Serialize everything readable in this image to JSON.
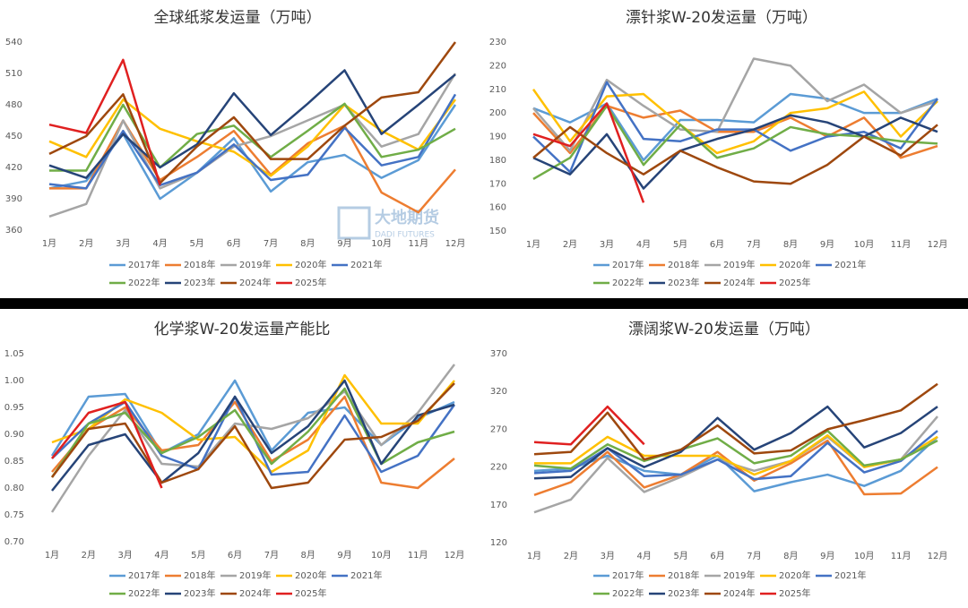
{
  "watermark": {
    "text": "大地期货",
    "subtext": "DADI FUTURES"
  },
  "chart_data": [
    {
      "type": "line",
      "title": "全球纸浆发运量（万吨）",
      "categories": [
        "1月",
        "2月",
        "3月",
        "4月",
        "5月",
        "6月",
        "7月",
        "8月",
        "9月",
        "10月",
        "11月",
        "12月"
      ],
      "ylim": [
        360,
        540
      ],
      "yticks": [
        360,
        390,
        420,
        450,
        480,
        510,
        540
      ],
      "series": [
        {
          "name": "2017年",
          "color": "#5b9bd5",
          "values": [
            400,
            407,
            452,
            390,
            415,
            448,
            397,
            425,
            432,
            410,
            427,
            480
          ]
        },
        {
          "name": "2018年",
          "color": "#ed7d31",
          "values": [
            400,
            400,
            465,
            408,
            430,
            455,
            413,
            443,
            460,
            396,
            377,
            418
          ]
        },
        {
          "name": "2019年",
          "color": "#a5a5a5",
          "values": [
            373,
            385,
            465,
            400,
            415,
            440,
            450,
            465,
            480,
            440,
            452,
            510
          ]
        },
        {
          "name": "2020年",
          "color": "#ffc000",
          "values": [
            445,
            430,
            485,
            457,
            445,
            435,
            412,
            440,
            480,
            455,
            437,
            485
          ]
        },
        {
          "name": "2021年",
          "color": "#4472c4",
          "values": [
            404,
            400,
            455,
            403,
            415,
            442,
            408,
            413,
            458,
            422,
            430,
            490
          ]
        },
        {
          "name": "2022年",
          "color": "#70ad47",
          "values": [
            417,
            417,
            480,
            420,
            452,
            460,
            430,
            455,
            481,
            430,
            437,
            457
          ]
        },
        {
          "name": "2023年",
          "color": "#264478",
          "values": [
            422,
            410,
            452,
            420,
            442,
            491,
            451,
            481,
            513,
            452,
            480,
            509
          ]
        },
        {
          "name": "2024年",
          "color": "#9e480e",
          "values": [
            433,
            450,
            490,
            405,
            440,
            468,
            428,
            428,
            460,
            487,
            492,
            540
          ]
        },
        {
          "name": "2025年",
          "color": "#e02020",
          "values": [
            461,
            453,
            523,
            403,
            null,
            null,
            null,
            null,
            null,
            null,
            null,
            null
          ]
        }
      ]
    },
    {
      "type": "line",
      "title": "漂针浆W-20发运量（万吨）",
      "categories": [
        "1月",
        "2月",
        "3月",
        "4月",
        "5月",
        "6月",
        "7月",
        "8月",
        "9月",
        "10月",
        "11月",
        "12月"
      ],
      "ylim": [
        150,
        230
      ],
      "yticks": [
        150,
        160,
        170,
        180,
        190,
        200,
        210,
        220,
        230
      ],
      "series": [
        {
          "name": "2017年",
          "color": "#5b9bd5",
          "values": [
            202,
            196,
            204,
            180,
            197,
            197,
            196,
            208,
            206,
            200,
            200,
            206
          ]
        },
        {
          "name": "2018年",
          "color": "#ed7d31",
          "values": [
            200,
            183,
            203,
            198,
            201,
            192,
            192,
            198,
            190,
            198,
            181,
            186
          ]
        },
        {
          "name": "2019年",
          "color": "#a5a5a5",
          "values": [
            202,
            184,
            214,
            203,
            193,
            192,
            223,
            220,
            205,
            212,
            200,
            205
          ]
        },
        {
          "name": "2020年",
          "color": "#ffc000",
          "values": [
            210,
            188,
            207,
            208,
            195,
            183,
            188,
            200,
            202,
            209,
            190,
            205
          ]
        },
        {
          "name": "2021年",
          "color": "#4472c4",
          "values": [
            190,
            175,
            213,
            189,
            188,
            193,
            193,
            184,
            190,
            192,
            185,
            206
          ]
        },
        {
          "name": "2022年",
          "color": "#70ad47",
          "values": [
            172,
            181,
            203,
            178,
            195,
            181,
            185,
            194,
            191,
            190,
            188,
            187
          ]
        },
        {
          "name": "2023年",
          "color": "#264478",
          "values": [
            181,
            174,
            191,
            168,
            184,
            189,
            193,
            199,
            196,
            190,
            198,
            192
          ]
        },
        {
          "name": "2024年",
          "color": "#9e480e",
          "values": [
            181,
            194,
            183,
            174,
            184,
            177,
            171,
            170,
            178,
            190,
            182,
            195
          ]
        },
        {
          "name": "2025年",
          "color": "#e02020",
          "values": [
            191,
            186,
            204,
            162,
            null,
            null,
            null,
            null,
            null,
            null,
            null,
            null
          ]
        }
      ]
    },
    {
      "type": "line",
      "title": "化学浆W-20发运量产能比",
      "categories": [
        "1月",
        "2月",
        "3月",
        "4月",
        "5月",
        "6月",
        "7月",
        "8月",
        "9月",
        "10月",
        "11月",
        "12月"
      ],
      "ylim": [
        0.7,
        1.05
      ],
      "yticks": [
        {
          "value": 0.7,
          "label": "0.70"
        },
        0.75,
        {
          "value": 0.8,
          "label": "0.80"
        },
        0.85,
        {
          "value": 0.9,
          "label": "0.90"
        },
        0.95,
        {
          "value": 1,
          "label": "1.00"
        },
        1.05
      ],
      "series": [
        {
          "name": "2017年",
          "color": "#5b9bd5",
          "values": [
            0.86,
            0.97,
            0.975,
            0.865,
            0.9,
            1.0,
            0.87,
            0.94,
            0.95,
            0.88,
            0.93,
            0.96
          ]
        },
        {
          "name": "2018年",
          "color": "#ed7d31",
          "values": [
            0.83,
            0.91,
            0.95,
            0.87,
            0.88,
            0.96,
            0.85,
            0.89,
            0.97,
            0.81,
            0.8,
            0.855
          ]
        },
        {
          "name": "2019年",
          "color": "#a5a5a5",
          "values": [
            0.755,
            0.86,
            0.945,
            0.845,
            0.84,
            0.92,
            0.91,
            0.93,
            0.98,
            0.88,
            0.94,
            1.03
          ]
        },
        {
          "name": "2020年",
          "color": "#ffc000",
          "values": [
            0.885,
            0.91,
            0.965,
            0.94,
            0.89,
            0.895,
            0.83,
            0.87,
            1.01,
            0.92,
            0.92,
            1.0
          ]
        },
        {
          "name": "2021年",
          "color": "#4472c4",
          "values": [
            0.855,
            0.92,
            0.96,
            0.86,
            0.835,
            0.97,
            0.825,
            0.83,
            0.935,
            0.83,
            0.86,
            0.955
          ]
        },
        {
          "name": "2022年",
          "color": "#70ad47",
          "values": [
            0.82,
            0.92,
            0.94,
            0.865,
            0.895,
            0.945,
            0.845,
            0.905,
            0.985,
            0.845,
            0.885,
            0.905
          ]
        },
        {
          "name": "2023年",
          "color": "#264478",
          "values": [
            0.795,
            0.88,
            0.9,
            0.81,
            0.865,
            0.97,
            0.865,
            0.915,
            1.0,
            0.845,
            0.935,
            0.955
          ]
        },
        {
          "name": "2024年",
          "color": "#9e480e",
          "values": [
            0.82,
            0.91,
            0.92,
            0.81,
            0.835,
            0.915,
            0.8,
            0.81,
            0.89,
            0.895,
            0.925,
            0.995
          ]
        },
        {
          "name": "2025年",
          "color": "#e02020",
          "values": [
            0.855,
            0.94,
            0.96,
            0.8,
            null,
            null,
            null,
            null,
            null,
            null,
            null,
            null
          ]
        }
      ]
    },
    {
      "type": "line",
      "title": "漂阔浆W-20发运量（万吨）",
      "categories": [
        "1月",
        "2月",
        "3月",
        "4月",
        "5月",
        "6月",
        "7月",
        "8月",
        "9月",
        "10月",
        "11月",
        "12月"
      ],
      "ylim": [
        120,
        370
      ],
      "yticks": [
        120,
        170,
        220,
        270,
        320,
        370
      ],
      "series": [
        {
          "name": "2017年",
          "color": "#5b9bd5",
          "values": [
            215,
            218,
            235,
            215,
            210,
            235,
            188,
            200,
            210,
            195,
            215,
            260
          ]
        },
        {
          "name": "2018年",
          "color": "#ed7d31",
          "values": [
            183,
            200,
            240,
            193,
            210,
            240,
            202,
            225,
            255,
            184,
            185,
            220
          ]
        },
        {
          "name": "2019年",
          "color": "#a5a5a5",
          "values": [
            160,
            177,
            232,
            187,
            207,
            230,
            215,
            228,
            260,
            220,
            230,
            287
          ]
        },
        {
          "name": "2020年",
          "color": "#ffc000",
          "values": [
            225,
            225,
            260,
            235,
            235,
            235,
            210,
            228,
            262,
            220,
            230,
            260
          ]
        },
        {
          "name": "2021年",
          "color": "#4472c4",
          "values": [
            212,
            215,
            245,
            208,
            210,
            230,
            204,
            208,
            252,
            213,
            228,
            268
          ]
        },
        {
          "name": "2022年",
          "color": "#70ad47",
          "values": [
            222,
            218,
            250,
            228,
            243,
            258,
            225,
            235,
            268,
            222,
            230,
            255
          ]
        },
        {
          "name": "2023年",
          "color": "#264478",
          "values": [
            205,
            207,
            245,
            220,
            240,
            285,
            243,
            265,
            300,
            246,
            265,
            300
          ]
        },
        {
          "name": "2024年",
          "color": "#9e480e",
          "values": [
            237,
            240,
            292,
            230,
            243,
            275,
            238,
            242,
            270,
            282,
            295,
            330
          ]
        },
        {
          "name": "2025年",
          "color": "#e02020",
          "values": [
            253,
            250,
            300,
            250,
            null,
            null,
            null,
            null,
            null,
            null,
            null,
            null
          ]
        }
      ]
    }
  ]
}
